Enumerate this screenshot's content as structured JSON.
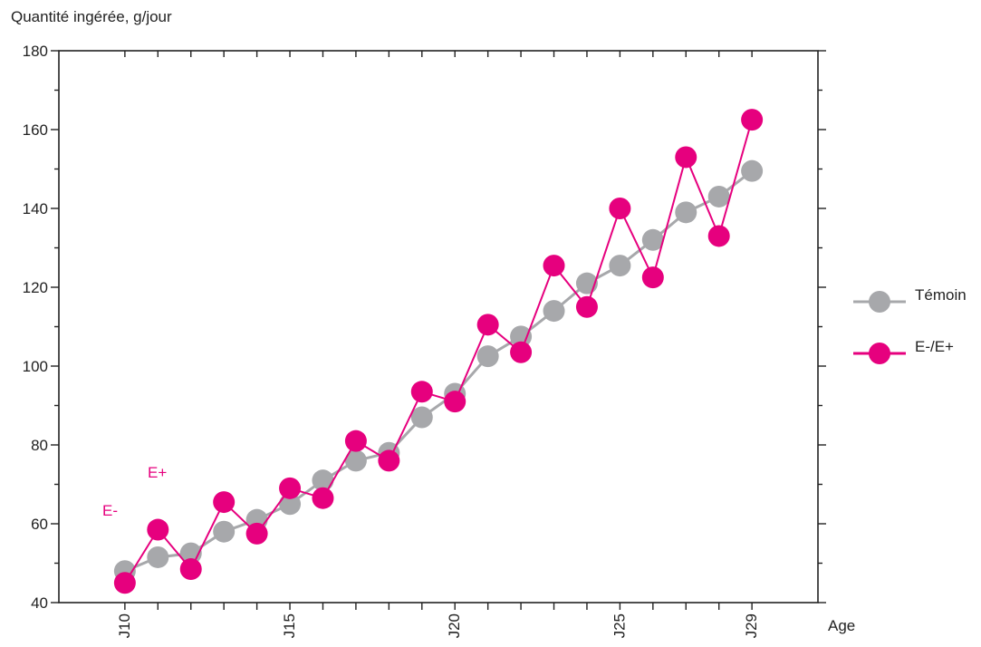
{
  "chart_data": {
    "type": "line",
    "ylabel": "Quantité ingérée, g/jour",
    "xlabel": "Age",
    "ylim": [
      40,
      180
    ],
    "yticks": [
      40,
      60,
      80,
      100,
      120,
      140,
      160,
      180
    ],
    "x": [
      10,
      11,
      12,
      13,
      14,
      15,
      16,
      17,
      18,
      19,
      20,
      21,
      22,
      23,
      24,
      25,
      26,
      27,
      28,
      29
    ],
    "xtick_labels": [
      {
        "x": 10,
        "label": "J10"
      },
      {
        "x": 15,
        "label": "J15"
      },
      {
        "x": 20,
        "label": "J20"
      },
      {
        "x": 25,
        "label": "J25"
      },
      {
        "x": 29,
        "label": "J29"
      }
    ],
    "series": [
      {
        "name": "Témoin",
        "color": "#a7a8ab",
        "values": [
          48,
          51.5,
          52.5,
          58,
          61,
          65,
          71,
          76,
          78,
          87,
          93,
          102.5,
          107.5,
          114,
          121,
          125.5,
          132,
          139,
          143,
          149.5
        ]
      },
      {
        "name": "E-/E+",
        "color": "#e6007e",
        "values": [
          45,
          58.5,
          48.5,
          65.5,
          57.5,
          69,
          66.5,
          81,
          76,
          93.5,
          91,
          110.5,
          103.5,
          125.5,
          115,
          140,
          122.5,
          153,
          133,
          162.5
        ]
      }
    ],
    "annotations": [
      {
        "text": "E+",
        "color": "#e6007e"
      },
      {
        "text": "E-",
        "color": "#e6007e"
      }
    ],
    "legend_placement": "right",
    "grid": false
  }
}
